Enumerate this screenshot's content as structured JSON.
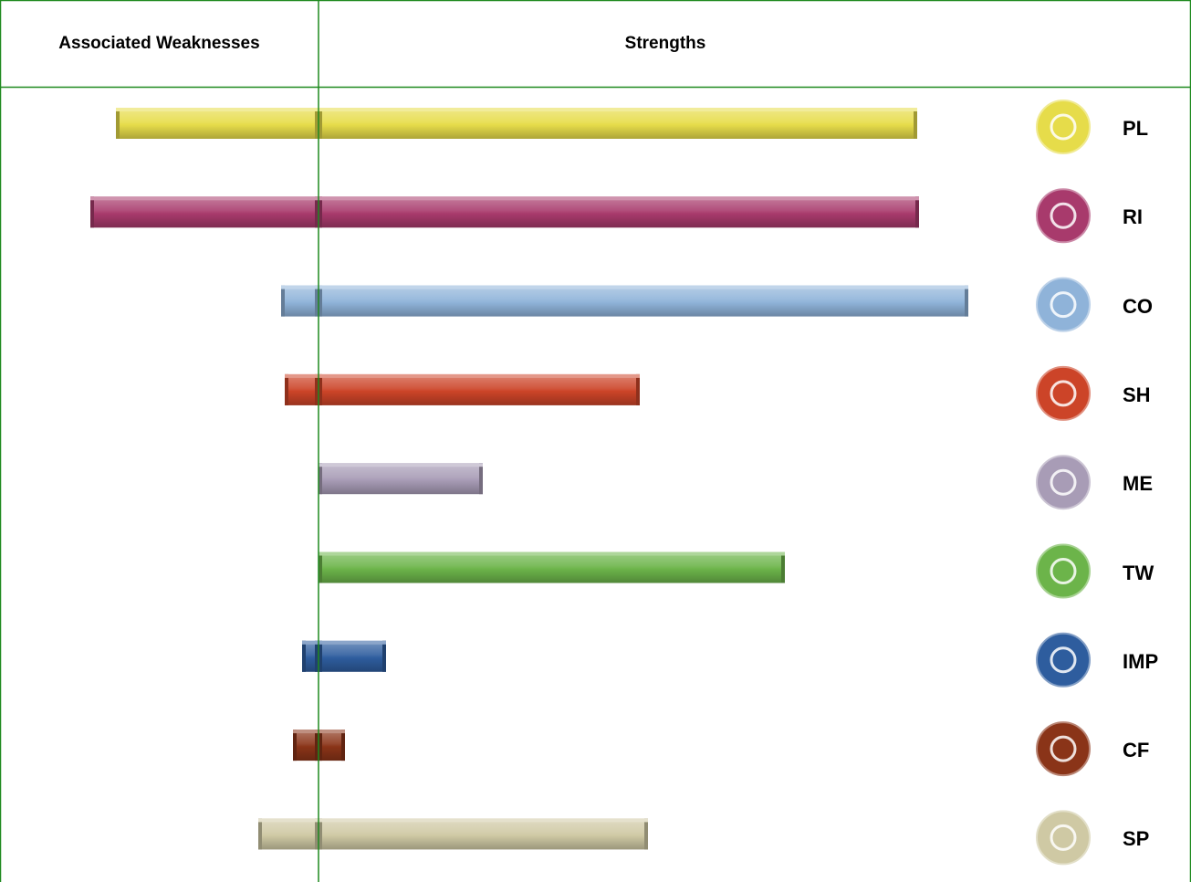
{
  "header": {
    "left": "Associated Weaknesses",
    "right": "Strengths"
  },
  "chart_data": {
    "type": "bar",
    "orientation": "horizontal-diverging",
    "categories": [
      "PL",
      "RI",
      "CO",
      "SH",
      "ME",
      "TW",
      "IMP",
      "CF",
      "SP"
    ],
    "series": [
      {
        "values": [
          -222,
          -250,
          -41,
          -37,
          0,
          0,
          -18,
          -28,
          -66
        ]
      },
      {
        "values": [
          656,
          658,
          712,
          352,
          180,
          511,
          74,
          29,
          361
        ]
      }
    ],
    "colors": [
      "#e6dc4a",
      "#a83a6c",
      "#8fb3d9",
      "#cc4428",
      "#a89cb6",
      "#6cb44a",
      "#2e5d9e",
      "#8a3418",
      "#cfc9a4"
    ],
    "icons": [
      "lightbulb-icon",
      "telephone-icon",
      "person-icon",
      "tape-measure-icon",
      "eye-icon",
      "people-icon",
      "gears-icon",
      "wrench-hand-icon",
      "microscope-icon"
    ],
    "grid_line_color": "#1f8a1f"
  }
}
